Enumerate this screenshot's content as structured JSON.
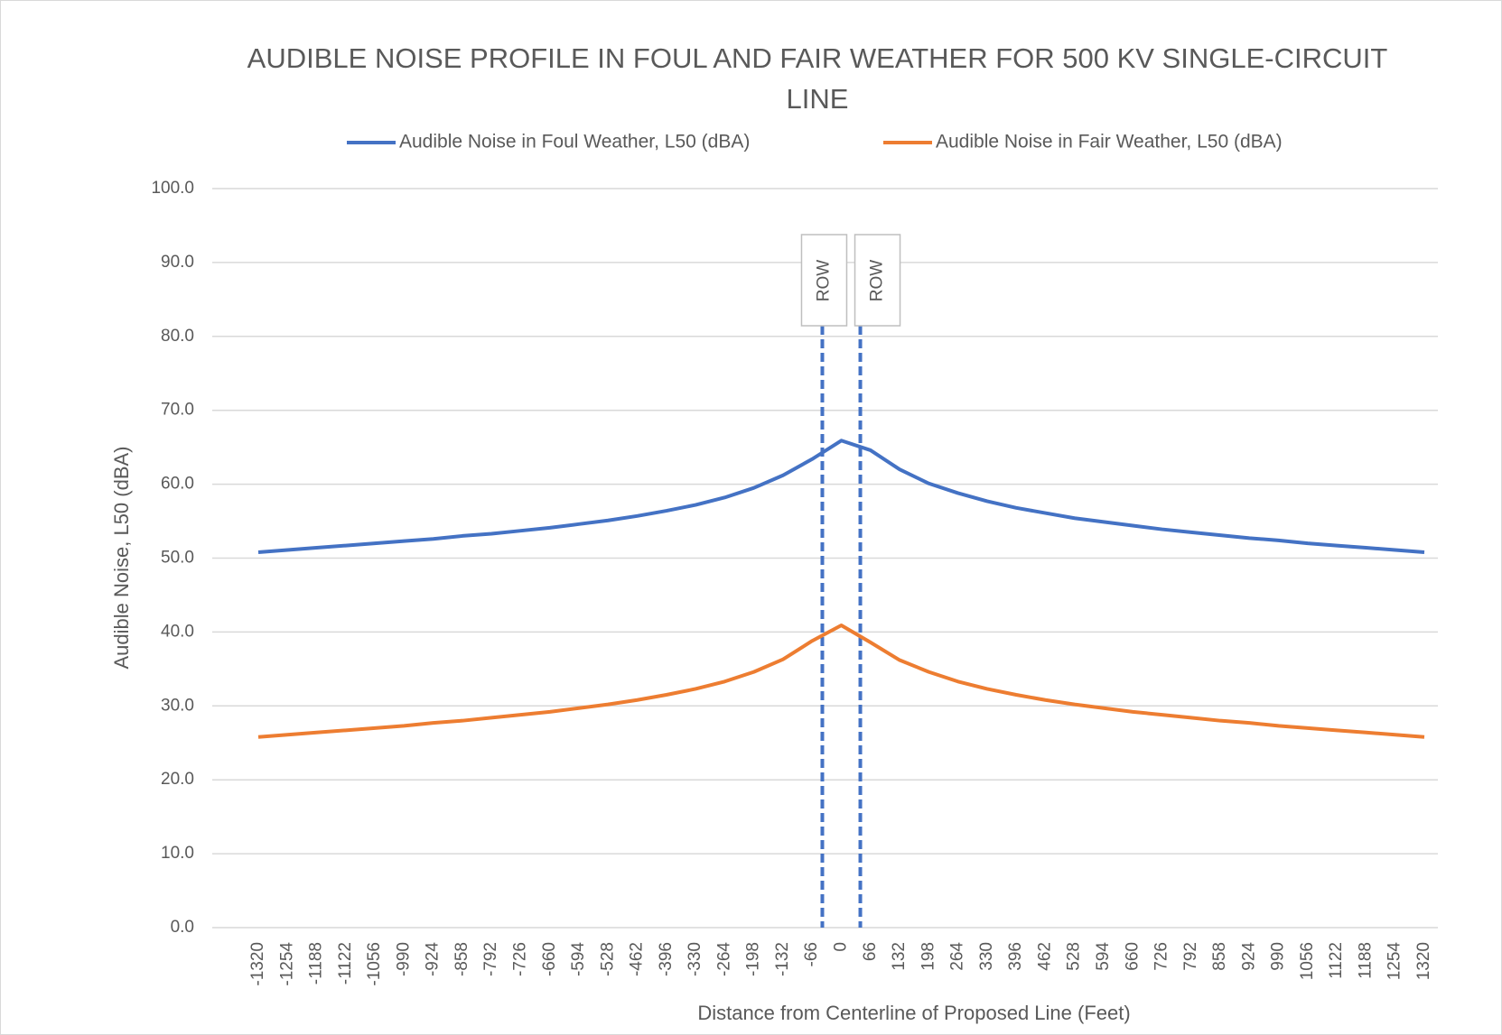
{
  "chart_data": {
    "type": "line",
    "title": "AUDIBLE NOISE PROFILE IN FOUL AND FAIR WEATHER FOR 500 KV SINGLE-CIRCUIT LINE",
    "x_label": "Distance from Centerline of Proposed Line (Feet)",
    "y_label": "Audible Noise, L50 (dBA)",
    "x": [
      -1320,
      -1254,
      -1188,
      -1122,
      -1056,
      -990,
      -924,
      -858,
      -792,
      -726,
      -660,
      -594,
      -528,
      -462,
      -396,
      -330,
      -264,
      -198,
      -132,
      -66,
      0,
      66,
      132,
      198,
      264,
      330,
      396,
      462,
      528,
      594,
      660,
      726,
      792,
      858,
      924,
      990,
      1056,
      1122,
      1188,
      1254,
      1320
    ],
    "xlim": [
      -1320,
      1320
    ],
    "series": [
      {
        "name": "Audible Noise in Foul Weather, L50 (dBA)",
        "color": "#4472c4",
        "values": [
          50.8,
          51.1,
          51.4,
          51.7,
          52.0,
          52.3,
          52.6,
          53.0,
          53.3,
          53.7,
          54.1,
          54.6,
          55.1,
          55.7,
          56.4,
          57.2,
          58.2,
          59.5,
          61.2,
          63.4,
          65.9,
          64.6,
          62.0,
          60.1,
          58.8,
          57.7,
          56.8,
          56.1,
          55.4,
          54.9,
          54.4,
          53.9,
          53.5,
          53.1,
          52.7,
          52.4,
          52.0,
          51.7,
          51.4,
          51.1,
          50.8
        ]
      },
      {
        "name": "Audible Noise in Fair Weather, L50 (dBA)",
        "color": "#ed7d31",
        "values": [
          25.8,
          26.1,
          26.4,
          26.7,
          27.0,
          27.3,
          27.7,
          28.0,
          28.4,
          28.8,
          29.2,
          29.7,
          30.2,
          30.8,
          31.5,
          32.3,
          33.3,
          34.6,
          36.3,
          38.8,
          40.9,
          38.6,
          36.2,
          34.6,
          33.3,
          32.3,
          31.5,
          30.8,
          30.2,
          29.7,
          29.2,
          28.8,
          28.4,
          28.0,
          27.7,
          27.3,
          27.0,
          26.7,
          26.4,
          26.1,
          25.8
        ]
      }
    ],
    "ylim": [
      0,
      100
    ],
    "yticks": [
      {
        "value": 0,
        "label": "0.0"
      },
      {
        "value": 10,
        "label": "10.0"
      },
      {
        "value": 20,
        "label": "20.0"
      },
      {
        "value": 30,
        "label": "30.0"
      },
      {
        "value": 40,
        "label": "40.0"
      },
      {
        "value": 50,
        "label": "50.0"
      },
      {
        "value": 60,
        "label": "60.0"
      },
      {
        "value": 70,
        "label": "70.0"
      },
      {
        "value": 80,
        "label": "80.0"
      },
      {
        "value": 90,
        "label": "90.0"
      },
      {
        "value": 100,
        "label": "100.0"
      }
    ],
    "grid": true,
    "legend": "top",
    "annotations": [
      {
        "text": "ROW",
        "x": -43,
        "color": "#4472c4"
      },
      {
        "text": "ROW",
        "x": 43,
        "color": "#4472c4"
      }
    ]
  }
}
